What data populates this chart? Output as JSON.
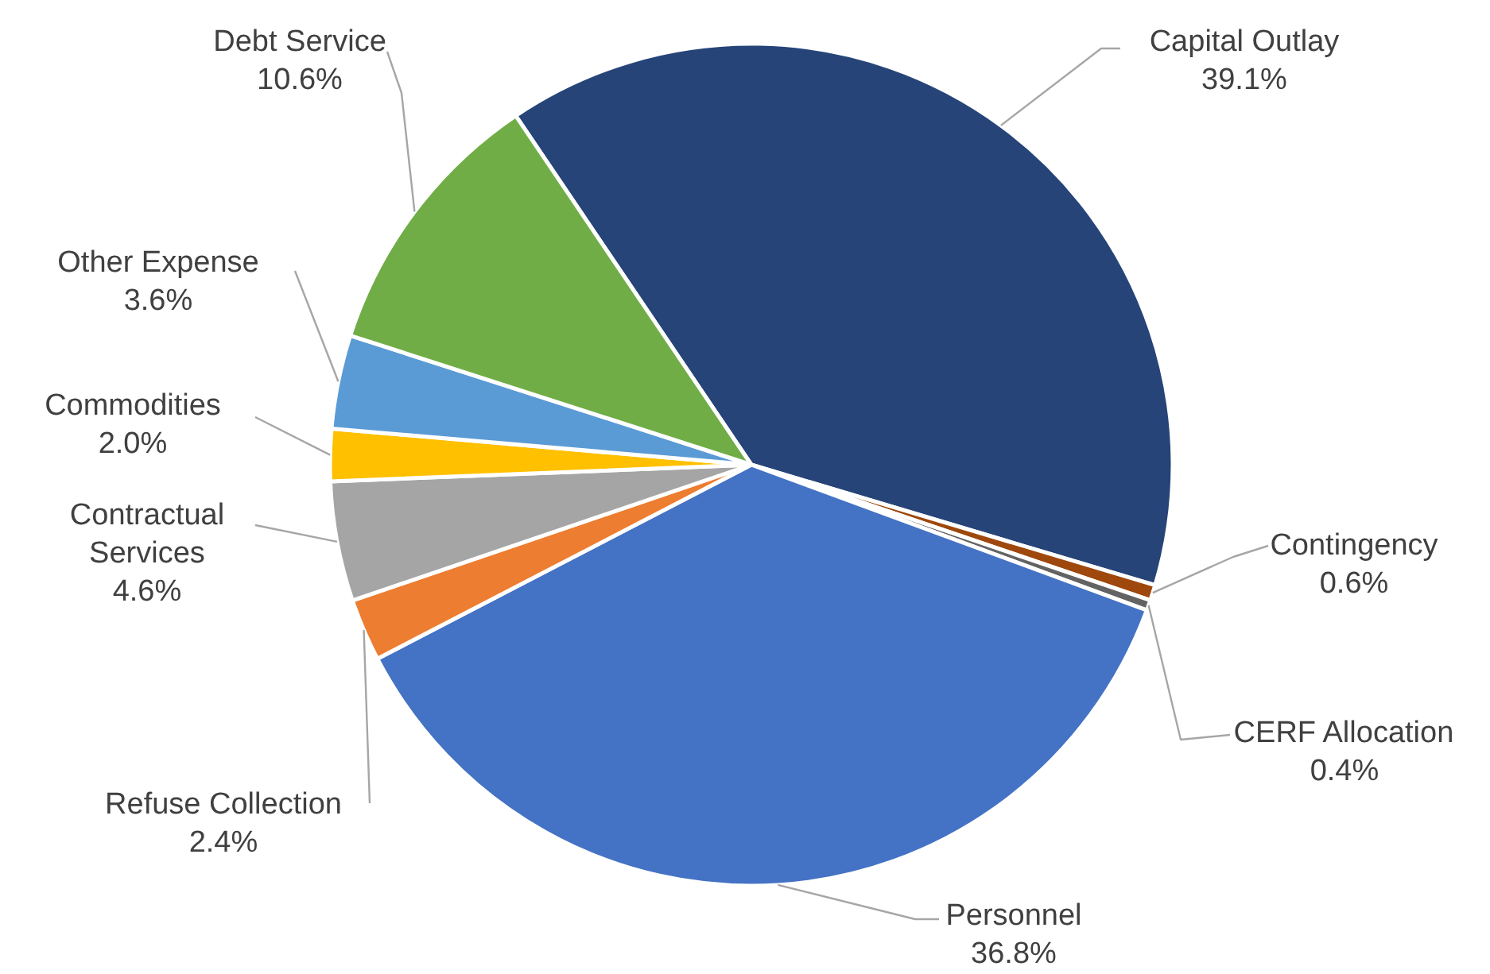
{
  "chart_data": {
    "type": "pie",
    "categories": [
      "Capital Outlay",
      "Contingency",
      "CERF Allocation",
      "Personnel",
      "Refuse Collection",
      "Contractual Services",
      "Commodities",
      "Other Expense",
      "Debt Service"
    ],
    "values": [
      39.1,
      0.6,
      0.4,
      36.8,
      2.4,
      4.6,
      2.0,
      3.6,
      10.6
    ],
    "colors": [
      "#264478",
      "#9e480e",
      "#636363",
      "#4472c4",
      "#ed7d31",
      "#a5a5a5",
      "#ffc000",
      "#5b9bd5",
      "#70ad47"
    ],
    "value_labels": [
      "39.1%",
      "0.6%",
      "0.4%",
      "36.8%",
      "2.4%",
      "4.6%",
      "2.0%",
      "3.6%",
      "10.6%"
    ]
  }
}
